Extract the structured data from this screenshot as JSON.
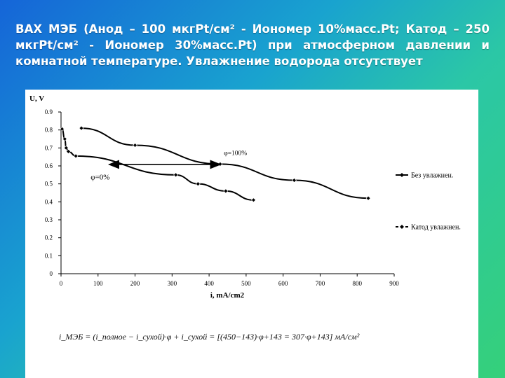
{
  "slide": {
    "title": "ВАХ МЭБ (Анод – 100 мкгPt/см² - Иономер 10%масс.Pt; Катод – 250 мкгPt/см² - Иономер 30%масс.Pt) при атмосферном давлении и комнатной температуре. Увлажнение водорода отсутствует",
    "formula": "i_МЭБ = (i_полное − i_сухой)·φ + i_сухой = [(450−143)·φ+143 = 307·φ+143] мА/см²"
  },
  "chart_data": {
    "type": "line",
    "title": "",
    "xlabel": "i, mA/cm2",
    "ylabel": "U, V",
    "xlim": [
      0,
      900
    ],
    "ylim": [
      0,
      0.9
    ],
    "x_ticks": [
      0,
      100,
      200,
      300,
      400,
      500,
      600,
      700,
      800,
      900
    ],
    "y_ticks": [
      0,
      0.1,
      0.2,
      0.3,
      0.4,
      0.5,
      0.6,
      0.7,
      0.8,
      0.9
    ],
    "grid": false,
    "legend_position": "right",
    "series": [
      {
        "name": "Без увлажнен.",
        "color": "#000000",
        "marker": "diamond",
        "x": [
          55,
          200,
          430,
          630,
          830
        ],
        "y": [
          0.81,
          0.715,
          0.61,
          0.52,
          0.42
        ]
      },
      {
        "name": "Катод увлажнен.",
        "color": "#000000",
        "marker": "diamond",
        "x": [
          3,
          10,
          14,
          20,
          40,
          310,
          370,
          445,
          520
        ],
        "y": [
          0.805,
          0.75,
          0.7,
          0.68,
          0.655,
          0.55,
          0.5,
          0.46,
          0.41
        ]
      }
    ],
    "annotations": [
      {
        "text": "φ=100%",
        "x": 440,
        "y": 0.66
      },
      {
        "text": "φ=0%",
        "x": 80,
        "y": 0.525
      }
    ],
    "arrow": {
      "x1": 130,
      "x2": 430,
      "y": 0.608
    }
  }
}
